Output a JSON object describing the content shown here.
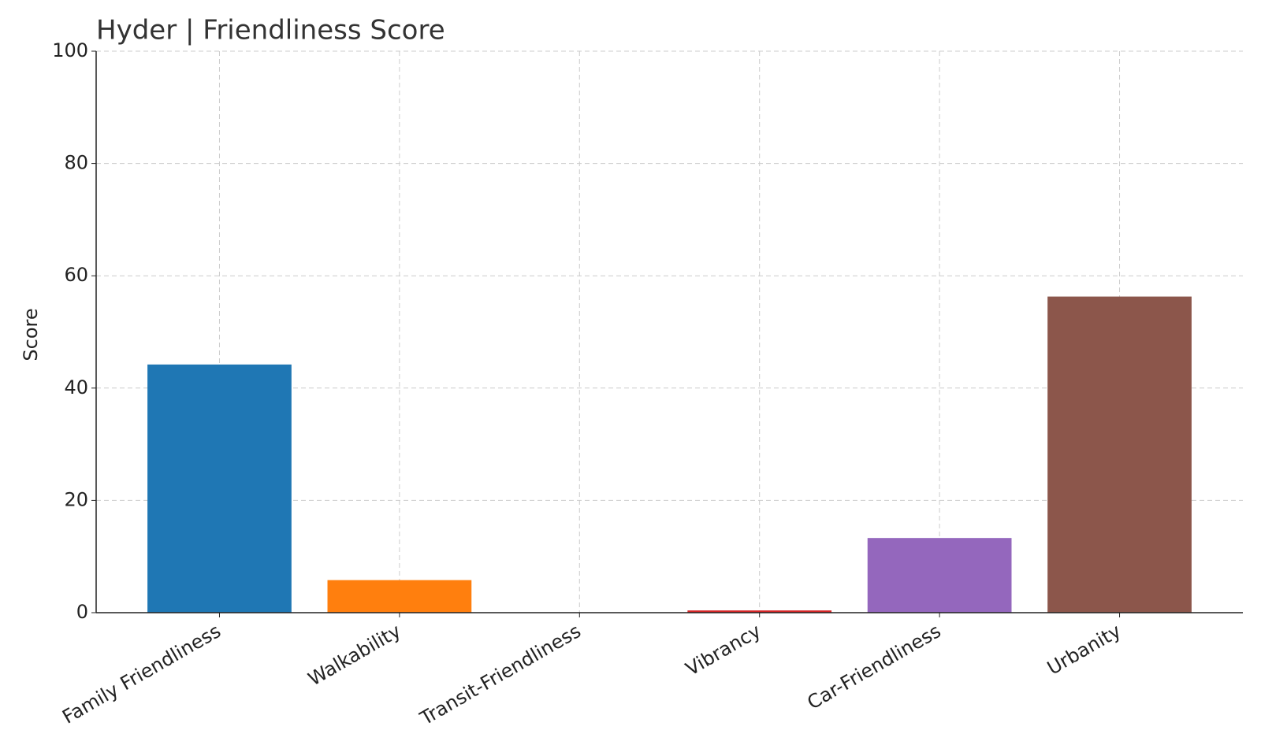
{
  "chart_data": {
    "type": "bar",
    "title": "Hyder | Friendliness Score",
    "y_label": "Score",
    "categories": [
      "Family Friendliness",
      "Walkability",
      "Transit-Friendliness",
      "Vibrancy",
      "Car-Friendliness",
      "Urbanity"
    ],
    "values": [
      44.2,
      5.8,
      0,
      0.4,
      13.3,
      56.3
    ],
    "colors": [
      "#1f77b4",
      "#ff7f0e",
      "#2ca02c",
      "#d62728",
      "#9467bd",
      "#8c564b"
    ],
    "ylim": [
      0,
      100
    ],
    "yticks": [
      0,
      20,
      40,
      60,
      80,
      100
    ],
    "grid": true
  }
}
